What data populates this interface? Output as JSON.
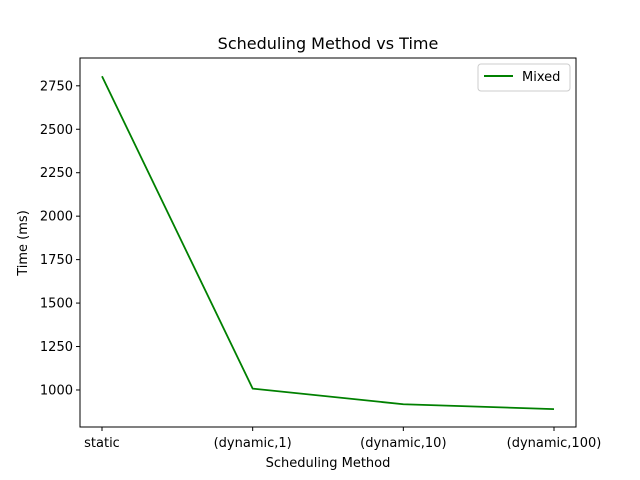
{
  "chart_data": {
    "type": "line",
    "title": "Scheduling Method vs Time",
    "xlabel": "Scheduling Method",
    "ylabel": "Time (ms)",
    "categories": [
      "static",
      "(dynamic,1)",
      "(dynamic,10)",
      "(dynamic,100)"
    ],
    "series": [
      {
        "name": "Mixed",
        "color": "#008000",
        "values": [
          2805,
          1008,
          918,
          890
        ]
      }
    ],
    "ylim": [
      787,
      2910
    ],
    "yticks": [
      1000,
      1250,
      1500,
      1750,
      2000,
      2250,
      2500,
      2750
    ],
    "ytick_labels": [
      "1000",
      "1250",
      "1500",
      "1750",
      "2000",
      "2250",
      "2500",
      "2750"
    ],
    "legend_position": "top-right",
    "grid": false
  }
}
